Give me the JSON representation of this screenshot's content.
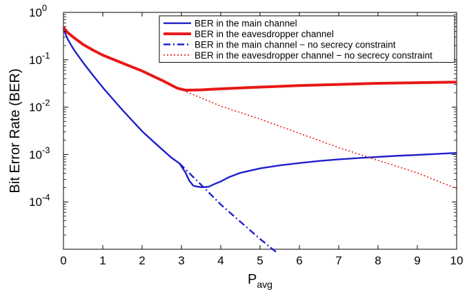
{
  "chart_data": {
    "type": "line",
    "xlabel": "P",
    "xlabel_sub": "avg",
    "ylabel": "Bit Error Rate (BER)",
    "xlim": [
      0,
      10
    ],
    "ylim": [
      1e-05,
      1
    ],
    "yscale": "log",
    "grid": false,
    "legend_position": "top-right",
    "x_ticks": [
      "0",
      "1",
      "2",
      "3",
      "4",
      "5",
      "6",
      "7",
      "8",
      "9",
      "10"
    ],
    "y_ticks": [
      {
        "value": 1,
        "base": "10",
        "exp": "0"
      },
      {
        "value": 0.1,
        "base": "10",
        "exp": "-1"
      },
      {
        "value": 0.01,
        "base": "10",
        "exp": "-2"
      },
      {
        "value": 0.001,
        "base": "10",
        "exp": "-3"
      },
      {
        "value": 0.0001,
        "base": "10",
        "exp": "-4"
      }
    ],
    "series": [
      {
        "name": "BER in the main channel",
        "color": "#1f1fcc",
        "style": "solid",
        "width": 2.4,
        "points": [
          [
            0,
            0.45
          ],
          [
            0.1,
            0.28
          ],
          [
            0.25,
            0.17
          ],
          [
            0.5,
            0.087
          ],
          [
            0.75,
            0.047
          ],
          [
            1,
            0.026
          ],
          [
            1.25,
            0.015
          ],
          [
            1.5,
            0.0087
          ],
          [
            1.75,
            0.0052
          ],
          [
            2,
            0.0031
          ],
          [
            2.25,
            0.002
          ],
          [
            2.5,
            0.0013
          ],
          [
            2.75,
            0.00085
          ],
          [
            2.95,
            0.00065
          ],
          [
            3.1,
            0.00042
          ],
          [
            3.2,
            0.00028
          ],
          [
            3.3,
            0.00022
          ],
          [
            3.4,
            0.00021
          ],
          [
            3.5,
            0.000205
          ],
          [
            3.6,
            0.000205
          ],
          [
            3.7,
            0.00021
          ],
          [
            3.8,
            0.00023
          ],
          [
            4,
            0.00027
          ],
          [
            4.2,
            0.00033
          ],
          [
            4.5,
            0.00041
          ],
          [
            5,
            0.00051
          ],
          [
            5.5,
            0.00059
          ],
          [
            6,
            0.00066
          ],
          [
            6.5,
            0.00073
          ],
          [
            7,
            0.00079
          ],
          [
            7.5,
            0.00084
          ],
          [
            8,
            0.00089
          ],
          [
            8.5,
            0.00094
          ],
          [
            9,
            0.00098
          ],
          [
            9.5,
            0.00103
          ],
          [
            10,
            0.00108
          ]
        ]
      },
      {
        "name": "BER in the eavesdropper channel",
        "color": "#e81717",
        "style": "solid",
        "width": 4,
        "points": [
          [
            0,
            0.48
          ],
          [
            0.1,
            0.38
          ],
          [
            0.25,
            0.3
          ],
          [
            0.5,
            0.21
          ],
          [
            0.75,
            0.16
          ],
          [
            1,
            0.125
          ],
          [
            1.5,
            0.085
          ],
          [
            2,
            0.058
          ],
          [
            2.5,
            0.037
          ],
          [
            2.9,
            0.025
          ],
          [
            3.1,
            0.0228
          ],
          [
            3.5,
            0.0232
          ],
          [
            4,
            0.0244
          ],
          [
            5,
            0.0265
          ],
          [
            6,
            0.0285
          ],
          [
            7,
            0.0302
          ],
          [
            8,
            0.0318
          ],
          [
            9,
            0.0328
          ],
          [
            10,
            0.0338
          ]
        ]
      },
      {
        "name": "BER in the main channel − no secrecy constraint",
        "color": "#1f1fcc",
        "style": "dashdot",
        "width": 2.4,
        "points": [
          [
            2.95,
            0.00065
          ],
          [
            3.5,
            0.00023
          ],
          [
            4,
            8.8e-05
          ],
          [
            4.5,
            3.8e-05
          ],
          [
            5,
            1.65e-05
          ],
          [
            5.45,
            8.2e-06
          ]
        ]
      },
      {
        "name": "BER in the eavesdropper channel − no secrecy constraint",
        "color": "#e81717",
        "style": "dotted",
        "width": 1.6,
        "points": [
          [
            3.05,
            0.0225
          ],
          [
            4,
            0.0105
          ],
          [
            5,
            0.0056
          ],
          [
            6,
            0.0028
          ],
          [
            7,
            0.0014
          ],
          [
            8,
            0.00075
          ],
          [
            9,
            0.00041
          ],
          [
            10,
            0.00019
          ]
        ]
      }
    ]
  }
}
